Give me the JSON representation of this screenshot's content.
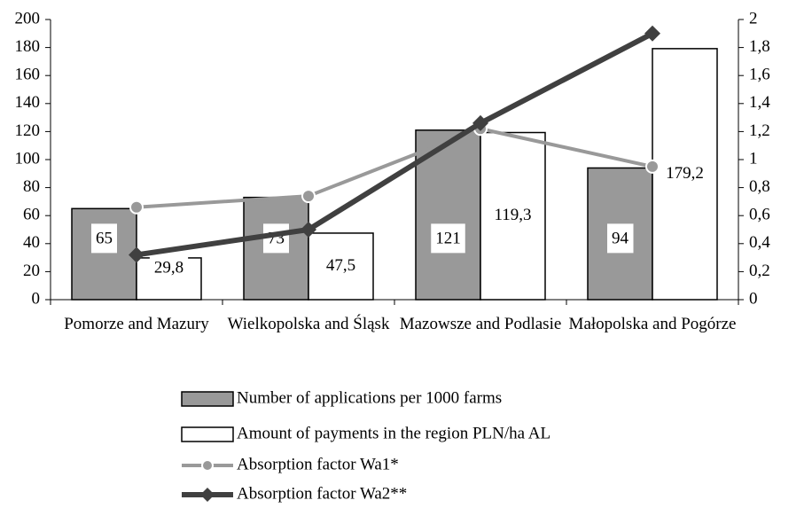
{
  "chart_data": {
    "type": "bar_line",
    "categories": [
      "Pomorze and Mazury",
      "Wielkopolska and Śląsk",
      "Mazowsze and Podlasie",
      "Małopolska and Pogórze"
    ],
    "series": [
      {
        "name": "Number of applications per 1000 farms",
        "type": "bar",
        "color": "#999999",
        "values": [
          65,
          73,
          121,
          94
        ]
      },
      {
        "name": "Amount of payments in the region PLN/ha AL",
        "type": "bar",
        "color": "#ffffff",
        "values": [
          29.8,
          47.5,
          119.3,
          179.2
        ],
        "value_labels": [
          "29,8",
          "47,5",
          "119,3",
          "179,2"
        ]
      },
      {
        "name": "Absorption factor Wa1*",
        "type": "line",
        "marker": "circle",
        "axis": "y2",
        "color": "#999999",
        "values": [
          0.66,
          0.74,
          1.22,
          0.95
        ]
      },
      {
        "name": "Absorption factor Wa2**",
        "type": "line",
        "marker": "diamond",
        "axis": "y2",
        "color": "#404040",
        "values": [
          0.32,
          0.5,
          1.26,
          1.9
        ]
      }
    ],
    "ylim": [
      0,
      200
    ],
    "yticks": [
      0,
      20,
      40,
      60,
      80,
      100,
      120,
      140,
      160,
      180,
      200
    ],
    "y2lim": [
      0,
      2
    ],
    "y2ticks": [
      0,
      {
        "value": 0.2,
        "label": "0,2"
      },
      {
        "value": 0.4,
        "label": "0,4"
      },
      {
        "value": 0.6,
        "label": "0,6"
      },
      {
        "value": 0.8,
        "label": "0,8"
      },
      1,
      {
        "value": 1.2,
        "label": "1,2"
      },
      {
        "value": 1.4,
        "label": "1,4"
      },
      {
        "value": 1.6,
        "label": "1,6"
      },
      {
        "value": 1.8,
        "label": "1,8"
      },
      2
    ],
    "grid": false,
    "legend": "bottom"
  }
}
